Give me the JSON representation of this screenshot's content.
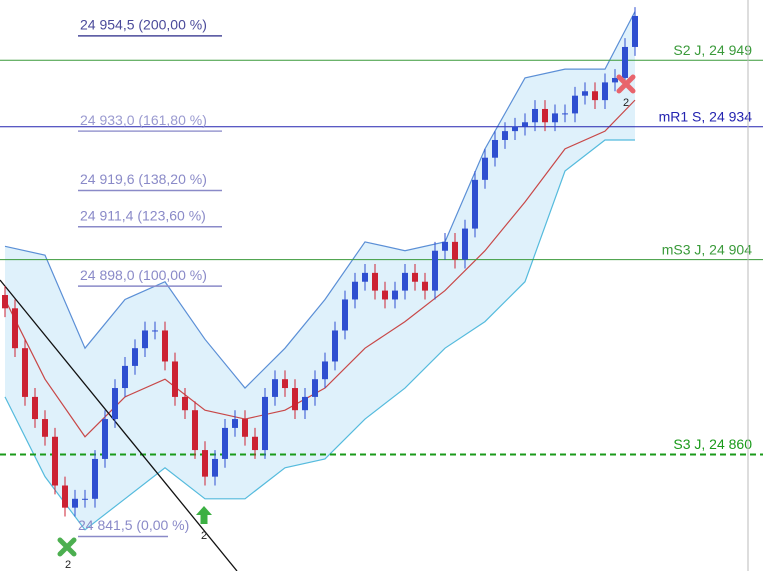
{
  "chart_data": {
    "type": "candlestick",
    "ylim": [
      24833.7,
      24962.6
    ],
    "up_color": "#2f4fd0",
    "down_color": "#cc2233",
    "open": [
      24896,
      24893,
      24884,
      24873,
      24868,
      24864,
      24853,
      24848,
      24850,
      24850,
      24859,
      24868,
      24875,
      24880,
      24884,
      24888,
      24888,
      24881,
      24873,
      24870,
      24861,
      24855,
      24859,
      24866,
      24868,
      24864,
      24861,
      24873,
      24877,
      24875,
      24870,
      24873,
      24877,
      24881,
      24888,
      24895,
      24899,
      24901,
      24897,
      24895,
      24897,
      24901,
      24899,
      24897,
      24906,
      24908,
      24904,
      24911,
      24922,
      24927,
      24931,
      24933,
      24934,
      24935,
      24938,
      24935,
      24937,
      24937,
      24941,
      24942,
      24940,
      24944,
      24945,
      24952
    ],
    "high": [
      24898,
      24895,
      24886,
      24875,
      24870,
      24866,
      24855,
      24852,
      24852,
      24861,
      24870,
      24877,
      24882,
      24886,
      24890,
      24890,
      24890,
      24883,
      24875,
      24872,
      24863,
      24861,
      24868,
      24870,
      24870,
      24866,
      24875,
      24879,
      24879,
      24877,
      24875,
      24879,
      24883,
      24890,
      24897,
      24901,
      24903,
      24903,
      24899,
      24899,
      24903,
      24903,
      24901,
      24908,
      24910,
      24910,
      24913,
      24924,
      24929,
      24933,
      24935,
      24936,
      24937,
      24940,
      24940,
      24939,
      24939,
      24943,
      24944,
      24944,
      24946,
      24947,
      24954,
      24961
    ],
    "low": [
      24891,
      24882,
      24871,
      24866,
      24862,
      24851,
      24846,
      24846,
      24848,
      24848,
      24857,
      24866,
      24873,
      24878,
      24882,
      24886,
      24879,
      24871,
      24868,
      24859,
      24853,
      24853,
      24857,
      24864,
      24862,
      24859,
      24859,
      24871,
      24873,
      24868,
      24868,
      24871,
      24875,
      24879,
      24886,
      24893,
      24897,
      24895,
      24893,
      24893,
      24895,
      24897,
      24895,
      24895,
      24904,
      24902,
      24902,
      24909,
      24920,
      24925,
      24929,
      24931,
      24932,
      24933,
      24933,
      24933,
      24935,
      24935,
      24939,
      24938,
      24938,
      24942,
      24943,
      24950
    ],
    "close": [
      24893,
      24884,
      24873,
      24868,
      24864,
      24853,
      24848,
      24850,
      24850,
      24859,
      24868,
      24875,
      24880,
      24884,
      24888,
      24888,
      24881,
      24873,
      24870,
      24861,
      24855,
      24859,
      24866,
      24868,
      24864,
      24861,
      24873,
      24877,
      24875,
      24870,
      24873,
      24877,
      24881,
      24888,
      24895,
      24899,
      24901,
      24897,
      24895,
      24897,
      24901,
      24899,
      24897,
      24906,
      24908,
      24904,
      24911,
      24922,
      24927,
      24931,
      24933,
      24934,
      24935,
      24938,
      24935,
      24937,
      24937,
      24941,
      24942,
      24940,
      24944,
      24945,
      24952,
      24959
    ],
    "bands": {
      "x": [
        0,
        4,
        8,
        12,
        16,
        20,
        24,
        28,
        32,
        36,
        40,
        44,
        48,
        52,
        56,
        60,
        63
      ],
      "fill": "#dff1fb",
      "upper": {
        "color": "#5b8fd6",
        "values": [
          24907,
          24905,
          24884,
          24895,
          24899,
          24886,
          24875,
          24884,
          24895,
          24908,
          24906,
          24908,
          24929,
          24945,
          24947,
          24947,
          24960
        ]
      },
      "middle": {
        "color": "#c84848",
        "values": [
          24895,
          24877,
          24864,
          24873,
          24877,
          24870,
          24868,
          24870,
          24875,
          24884,
          24890,
          24897,
          24906,
          24917,
          24929,
          24933,
          24940
        ]
      },
      "lower": {
        "color": "#55bbdd",
        "values": [
          24873,
          24855,
          24843,
          24850,
          24857,
          24850,
          24850,
          24857,
          24859,
          24868,
          24875,
          24884,
          24890,
          24899,
          24924,
          24931,
          24931
        ]
      }
    },
    "levels": [
      {
        "label": "S2 J, 24 949",
        "value": 24949,
        "color": "#3a9a3a",
        "dashed": false
      },
      {
        "label": "mR1 S, 24 934",
        "value": 24934,
        "color": "#2424b0",
        "dashed": false
      },
      {
        "label": "mS3 J, 24 904",
        "value": 24904,
        "color": "#3a9a3a",
        "dashed": false
      },
      {
        "label": "S3 J, 24 860",
        "value": 24860,
        "color": "#1a9a1a",
        "dashed": true
      }
    ],
    "fib_levels": [
      {
        "label": "24 954,5 (200,00 %)",
        "value": 24954.5,
        "color": "#4a4a9a"
      },
      {
        "label": "24 933,0 (161,80 %)",
        "value": 24933.0,
        "color": "#9a9ad0"
      },
      {
        "label": "24 919,6 (138,20 %)",
        "value": 24919.6,
        "color": "#8a8ac8"
      },
      {
        "label": "24 911,4 (123,60 %)",
        "value": 24911.4,
        "color": "#8a8ac8"
      },
      {
        "label": "24 898,0 (100,00 %)",
        "value": 24898.0,
        "color": "#8a8ac8"
      },
      {
        "label": "24 841,5 (0,00 %)",
        "value": 24841.5,
        "color": "#8a8ac8"
      }
    ],
    "markers": [
      {
        "label": "2"
      },
      {
        "label": "2"
      },
      {
        "label": "2"
      }
    ]
  }
}
